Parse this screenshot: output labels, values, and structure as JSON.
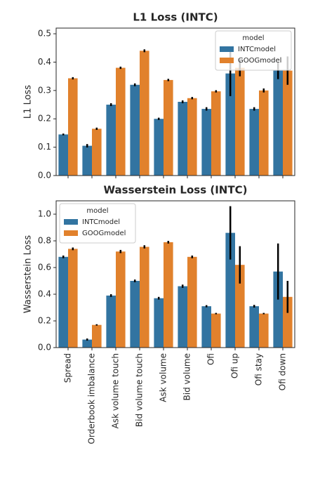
{
  "chart_data": [
    {
      "type": "bar",
      "title": "L1 Loss (INTC)",
      "y_label": "L1 Loss",
      "categories": [
        null,
        null,
        null,
        null,
        null,
        null,
        null,
        null,
        null,
        null
      ],
      "series": [
        {
          "name": "INTCmodel",
          "color": "#3274a1",
          "values": [
            0.145,
            0.105,
            0.25,
            0.32,
            0.2,
            0.26,
            0.235,
            0.36,
            0.235,
            0.37
          ],
          "errors": [
            0.003,
            0.006,
            0.005,
            0.005,
            0.004,
            0.005,
            0.006,
            0.08,
            0.006,
            0.03
          ]
        },
        {
          "name": "GOOGmodel",
          "color": "#e1812c",
          "values": [
            0.343,
            0.165,
            0.38,
            0.44,
            0.337,
            0.273,
            0.297,
            0.38,
            0.3,
            0.37
          ],
          "errors": [
            0.004,
            0.004,
            0.004,
            0.005,
            0.004,
            0.004,
            0.004,
            0.03,
            0.007,
            0.05
          ]
        }
      ],
      "ylim": [
        0,
        0.52
      ],
      "yticks": [
        {
          "value": 0,
          "label": "0.0"
        },
        0.1,
        0.2,
        0.3,
        0.4,
        0.5
      ],
      "legend_title": "model",
      "legend": "upper right"
    },
    {
      "type": "bar",
      "title": "Wasserstein Loss (INTC)",
      "y_label": "Wasserstein Loss",
      "categories": [
        "Spread",
        "Orderbook imbalance",
        "Ask volume touch",
        "Bid volume touch",
        "Ask volume",
        "Bid volume",
        "Ofi",
        "Ofi up",
        "Ofi stay",
        "Ofi down"
      ],
      "series": [
        {
          "name": "INTCmodel",
          "color": "#3274a1",
          "values": [
            0.68,
            0.06,
            0.39,
            0.5,
            0.37,
            0.46,
            0.31,
            0.86,
            0.31,
            0.57
          ],
          "errors": [
            0.01,
            0.008,
            0.01,
            0.01,
            0.01,
            0.012,
            0.008,
            0.2,
            0.01,
            0.21
          ]
        },
        {
          "name": "GOOGmodel",
          "color": "#e1812c",
          "values": [
            0.74,
            0.17,
            0.72,
            0.755,
            0.79,
            0.68,
            0.255,
            0.62,
            0.255,
            0.38
          ],
          "errors": [
            0.01,
            0.005,
            0.012,
            0.012,
            0.01,
            0.01,
            0.005,
            0.14,
            0.005,
            0.12
          ]
        }
      ],
      "ylim": [
        0,
        1.1
      ],
      "yticks": [
        {
          "value": 0,
          "label": "0.0"
        },
        0.2,
        0.4,
        0.6,
        0.8,
        {
          "value": 1,
          "label": "1.0"
        }
      ],
      "legend_title": "model",
      "legend": "upper left"
    }
  ]
}
